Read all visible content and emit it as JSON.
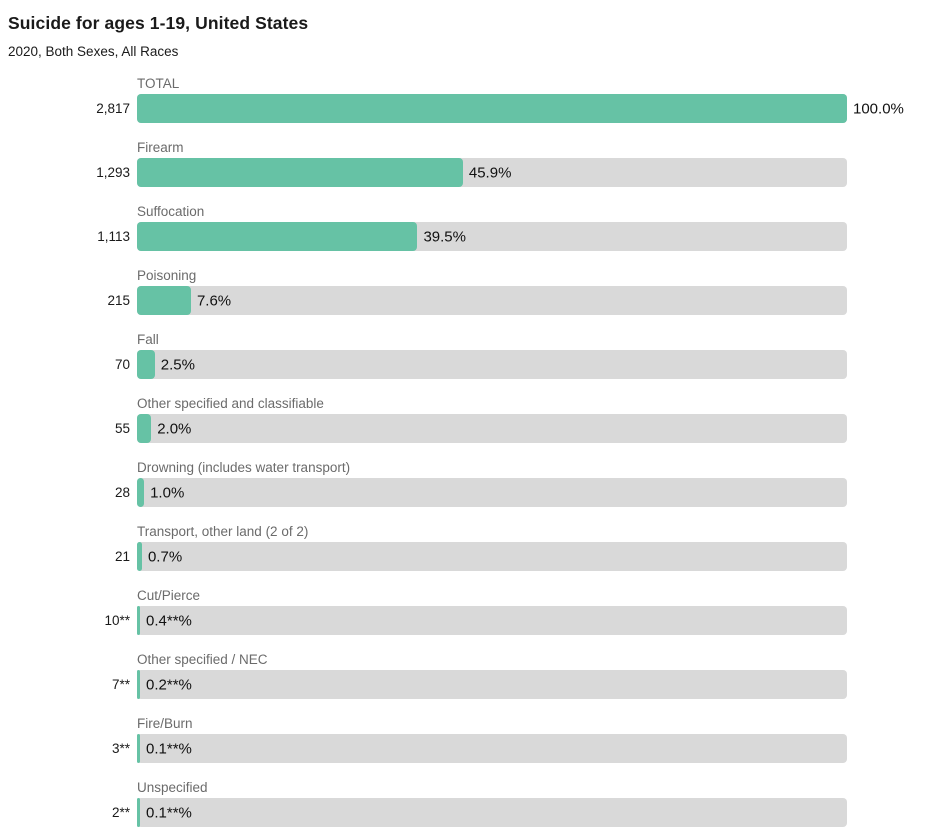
{
  "header": {
    "title": "Suicide for ages 1-19, United States",
    "subtitle": "2020, Both Sexes, All Races"
  },
  "colors": {
    "bar_fill": "#66c2a5",
    "bar_track": "#d9d9d9",
    "category_label": "#6b6b6b",
    "text": "#1a1a1a"
  },
  "chart_data": {
    "type": "bar",
    "orientation": "horizontal",
    "title": "Suicide for ages 1-19, United States",
    "subtitle": "2020, Both Sexes, All Races",
    "categories": [
      "TOTAL",
      "Firearm",
      "Suffocation",
      "Poisoning",
      "Fall",
      "Other specified and classifiable",
      "Drowning (includes water transport)",
      "Transport, other land (2 of 2)",
      "Cut/Pierce",
      "Other specified / NEC",
      "Fire/Burn",
      "Unspecified"
    ],
    "count_labels": [
      "2,817",
      "1,293",
      "1,113",
      "215",
      "70",
      "55",
      "28",
      "21",
      "10**",
      "7**",
      "3**",
      "2**"
    ],
    "percent_labels": [
      "100.0%",
      "45.9%",
      "39.5%",
      "7.6%",
      "2.5%",
      "2.0%",
      "1.0%",
      "0.7%",
      "0.4**%",
      "0.2**%",
      "0.1**%",
      "0.1**%"
    ],
    "series": [
      {
        "name": "count",
        "values": [
          2817,
          1293,
          1113,
          215,
          70,
          55,
          28,
          21,
          10,
          7,
          3,
          2
        ]
      },
      {
        "name": "percent",
        "values": [
          100.0,
          45.9,
          39.5,
          7.6,
          2.5,
          2.0,
          1.0,
          0.7,
          0.4,
          0.2,
          0.1,
          0.1
        ]
      }
    ],
    "xlim": [
      0,
      100
    ],
    "grid": false,
    "legend": false
  }
}
